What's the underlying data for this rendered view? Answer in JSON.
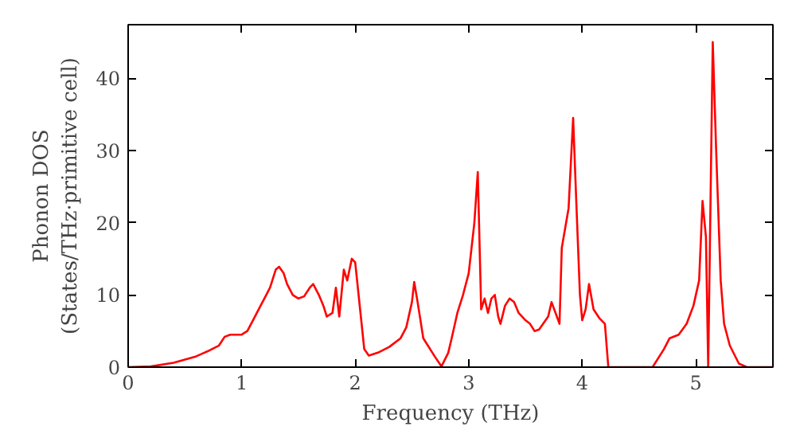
{
  "chart_data": {
    "type": "line",
    "xlabel": "Frequency (THz)",
    "ylabel": "Phonon DOS\n(States/THz·primitive cell)",
    "x": [
      0,
      0.2,
      0.4,
      0.6,
      0.7,
      0.8,
      0.85,
      0.9,
      1.0,
      1.05,
      1.1,
      1.15,
      1.2,
      1.25,
      1.3,
      1.33,
      1.37,
      1.4,
      1.45,
      1.5,
      1.55,
      1.6,
      1.63,
      1.68,
      1.72,
      1.75,
      1.8,
      1.83,
      1.86,
      1.9,
      1.93,
      1.97,
      2.0,
      2.05,
      2.08,
      2.12,
      2.2,
      2.3,
      2.4,
      2.45,
      2.5,
      2.52,
      2.55,
      2.6,
      2.7,
      2.76,
      2.82,
      2.85,
      2.9,
      2.95,
      3.0,
      3.05,
      3.08,
      3.11,
      3.14,
      3.17,
      3.2,
      3.23,
      3.26,
      3.28,
      3.32,
      3.36,
      3.4,
      3.44,
      3.5,
      3.54,
      3.58,
      3.62,
      3.7,
      3.73,
      3.8,
      3.82,
      3.88,
      3.92,
      3.95,
      3.98,
      4.0,
      4.03,
      4.06,
      4.1,
      4.15,
      4.2,
      4.23,
      4.5,
      4.62,
      4.72,
      4.77,
      4.85,
      4.92,
      4.98,
      5.03,
      5.06,
      5.09,
      5.11,
      5.15,
      5.18,
      5.22,
      5.25,
      5.3,
      5.38,
      5.45,
      5.68
    ],
    "series": [
      {
        "color": "#ff0000",
        "values": [
          0,
          0.1,
          0.6,
          1.5,
          2.2,
          3,
          4.2,
          4.5,
          4.5,
          5,
          6.5,
          8,
          9.5,
          11,
          13.5,
          13.9,
          13,
          11.5,
          10,
          9.5,
          9.8,
          11,
          11.5,
          10,
          8.5,
          7,
          7.5,
          11,
          7,
          13.5,
          12,
          15,
          14.5,
          7,
          2.5,
          1.6,
          2,
          2.8,
          4,
          5.5,
          9,
          11.8,
          9,
          4,
          1.5,
          0.1,
          2,
          4,
          7.5,
          10,
          13,
          20,
          27,
          8,
          9.5,
          7.5,
          9.5,
          10,
          7,
          6,
          8.5,
          9.5,
          9,
          7.5,
          6.5,
          6,
          5,
          5.2,
          7,
          9,
          6,
          16.5,
          22,
          34.5,
          22,
          10,
          6.5,
          8,
          11.5,
          8,
          6.8,
          6,
          0,
          0,
          0,
          2.5,
          4,
          4.5,
          6,
          8.5,
          12,
          23,
          18,
          0,
          45,
          30,
          12,
          6,
          3,
          0.5,
          0,
          0
        ]
      }
    ],
    "xlim": [
      0,
      5.68
    ],
    "ylim": [
      0,
      47.4
    ],
    "xticks": [
      0,
      1,
      2,
      3,
      4,
      5
    ],
    "yticks": [
      0,
      10,
      20,
      30,
      40
    ],
    "grid": false,
    "line_style": "solid"
  }
}
